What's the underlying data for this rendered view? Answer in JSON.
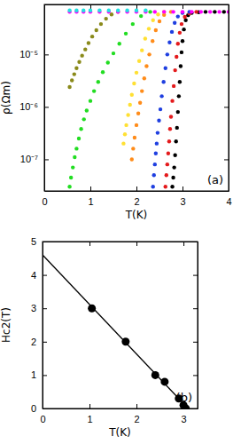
{
  "chart_data": [
    {
      "type": "scatter",
      "xlabel": "T(K)",
      "ylabel": "ρ(Ωm)",
      "annotations": [
        "(a)"
      ],
      "log": "y",
      "marker": "circle",
      "xlim": [
        0,
        4
      ],
      "xticks": [
        0,
        1,
        2,
        3,
        4
      ],
      "ylim": [
        2.5e-08,
        9e-05
      ],
      "yticks": [
        {
          "value": 1e-07,
          "label": "10⁻⁷"
        },
        {
          "value": 1e-06,
          "label": "10⁻⁶"
        },
        {
          "value": 1e-05,
          "label": "10⁻⁵"
        }
      ],
      "series": [
        {
          "color": "#000000",
          "x": [
            2.78,
            2.8,
            2.82,
            2.84,
            2.86,
            2.88,
            2.9,
            2.92,
            2.94,
            2.96,
            2.98,
            3.0,
            3.03,
            3.07,
            3.12,
            3.2,
            3.35,
            3.5,
            3.7,
            3.9
          ],
          "values": [
            3e-08,
            4.5e-08,
            7e-08,
            1.2e-07,
            2.2e-07,
            4e-07,
            8e-07,
            1.6e-06,
            3e-06,
            6e-06,
            1.1e-05,
            1.8e-05,
            3e-05,
            4.5e-05,
            5.6e-05,
            6.2e-05,
            6.4e-05,
            6.5e-05,
            6.5e-05,
            6.5e-05
          ]
        },
        {
          "color": "#e41a1c",
          "x": [
            2.63,
            2.65,
            2.67,
            2.69,
            2.71,
            2.73,
            2.75,
            2.78,
            2.81,
            2.84,
            2.87,
            2.9,
            2.94,
            2.98,
            3.05,
            3.15,
            3.3
          ],
          "values": [
            3e-08,
            5e-08,
            8e-08,
            1.3e-07,
            2.2e-07,
            3.8e-07,
            6.5e-07,
            1.3e-06,
            2.5e-06,
            5e-06,
            9e-06,
            1.6e-05,
            2.6e-05,
            3.8e-05,
            5.2e-05,
            6.1e-05,
            6.5e-05
          ]
        },
        {
          "color": "#1f3fe0",
          "x": [
            2.36,
            2.38,
            2.4,
            2.42,
            2.44,
            2.46,
            2.49,
            2.52,
            2.55,
            2.59,
            2.63,
            2.67,
            2.72,
            2.77,
            2.83,
            2.9,
            3.0,
            3.15
          ],
          "values": [
            3e-08,
            5e-08,
            8e-08,
            1.3e-07,
            2e-07,
            3.2e-07,
            5.5e-07,
            9e-07,
            1.6e-06,
            3e-06,
            5.5e-06,
            1e-05,
            1.7e-05,
            2.7e-05,
            4e-05,
            5.3e-05,
            6.2e-05,
            6.5e-05
          ]
        },
        {
          "color": "#ff8c1a",
          "x": [
            1.9,
            1.93,
            1.96,
            2.0,
            2.04,
            2.08,
            2.12,
            2.17,
            2.22,
            2.28,
            2.35,
            2.42,
            2.5,
            2.6,
            2.75
          ],
          "values": [
            1e-07,
            1.6e-07,
            2.6e-07,
            4.5e-07,
            7.5e-07,
            1.2e-06,
            2e-06,
            3.5e-06,
            6e-06,
            1e-05,
            1.8e-05,
            2.9e-05,
            4.3e-05,
            5.7e-05,
            6.5e-05
          ]
        },
        {
          "color": "#ffe033",
          "x": [
            1.72,
            1.75,
            1.78,
            1.82,
            1.86,
            1.9,
            1.95,
            2.0,
            2.06,
            2.12,
            2.19,
            2.27,
            2.36,
            2.47,
            2.6
          ],
          "values": [
            2e-07,
            3e-07,
            4.5e-07,
            7e-07,
            1.1e-06,
            1.7e-06,
            2.8e-06,
            4.5e-06,
            7.5e-06,
            1.2e-05,
            2e-05,
            3.1e-05,
            4.5e-05,
            5.8e-05,
            6.5e-05
          ]
        },
        {
          "color": "#22dd22",
          "x": [
            0.55,
            0.58,
            0.62,
            0.66,
            0.7,
            0.75,
            0.8,
            0.86,
            0.92,
            1.0,
            1.08,
            1.17,
            1.27,
            1.38,
            1.5,
            1.63,
            1.77,
            1.92,
            2.1,
            2.3
          ],
          "values": [
            3e-08,
            4.5e-08,
            7e-08,
            1.1e-07,
            1.6e-07,
            2.5e-07,
            3.8e-07,
            5.8e-07,
            8.5e-07,
            1.3e-06,
            2e-06,
            3e-06,
            4.6e-06,
            7e-06,
            1.05e-05,
            1.6e-05,
            2.5e-05,
            3.8e-05,
            5.4e-05,
            6.5e-05
          ]
        },
        {
          "color": "#8a8a1a",
          "x": [
            0.55,
            0.6,
            0.65,
            0.7,
            0.76,
            0.82,
            0.89,
            0.96,
            1.04,
            1.13,
            1.23,
            1.34,
            1.46,
            1.6
          ],
          "values": [
            2.4e-06,
            3.2e-06,
            4.2e-06,
            5.5e-06,
            7.2e-06,
            9.5e-06,
            1.25e-05,
            1.65e-05,
            2.2e-05,
            2.9e-05,
            3.8e-05,
            4.8e-05,
            5.8e-05,
            6.5e-05
          ]
        },
        {
          "color": "#ff00ff",
          "x": [
            0.55,
            0.7,
            0.85,
            1.0,
            1.2,
            1.4,
            1.6,
            1.8,
            2.0,
            2.2,
            2.4,
            2.6,
            2.8,
            3.0,
            3.2,
            3.4,
            3.6,
            3.8,
            4.0
          ],
          "values": [
            6.5e-05,
            6.5e-05,
            6.5e-05,
            6.5e-05,
            6.5e-05,
            6.5e-05,
            6.5e-05,
            6.5e-05,
            6.5e-05,
            6.5e-05,
            6.5e-05,
            6.5e-05,
            6.5e-05,
            6.5e-05,
            6.5e-05,
            6.5e-05,
            6.5e-05,
            6.5e-05,
            6.5e-05
          ]
        },
        {
          "color": "#22e0e0",
          "x": [
            0.55,
            0.7,
            0.85,
            1.0,
            1.2,
            1.4,
            1.6,
            1.8,
            2.0,
            2.2
          ],
          "values": [
            6.9e-05,
            6.9e-05,
            6.9e-05,
            6.9e-05,
            6.9e-05,
            6.9e-05,
            6.9e-05,
            6.9e-05,
            6.9e-05,
            6.9e-05
          ]
        }
      ]
    },
    {
      "type": "scatter",
      "xlabel": "T(K)",
      "ylabel": "Hc2(T)",
      "annotations": [
        "(b)"
      ],
      "xlim": [
        0,
        3.3
      ],
      "xticks": [
        0,
        1,
        2,
        3
      ],
      "ylim": [
        0,
        5
      ],
      "yticks": [
        0,
        1,
        2,
        3,
        4,
        5
      ],
      "series": [
        {
          "type": "scatter",
          "marker": "circle",
          "color": "#000000",
          "x": [
            1.05,
            1.77,
            2.4,
            2.6,
            2.9,
            3.0,
            3.05
          ],
          "values": [
            3.0,
            2.0,
            1.0,
            0.8,
            0.3,
            0.1,
            0.0
          ]
        },
        {
          "type": "line",
          "line_style": "solid",
          "color": "#000000",
          "x": [
            0,
            3.1
          ],
          "values": [
            4.6,
            0
          ]
        }
      ]
    }
  ]
}
